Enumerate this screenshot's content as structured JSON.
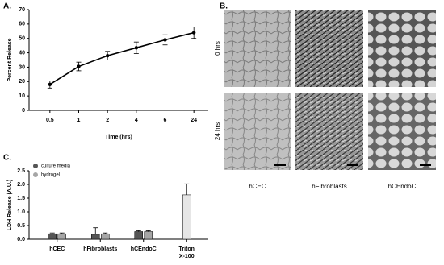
{
  "chart_data": [
    {
      "type": "line",
      "panel": "A.",
      "xlabel": "Time (hrs)",
      "ylabel": "Percent Release",
      "categories": [
        "0.5",
        "1",
        "2",
        "4",
        "6",
        "24"
      ],
      "series": [
        {
          "color": "#000000",
          "values": [
            18,
            30.5,
            38,
            43.5,
            49,
            54
          ],
          "errors": [
            2.5,
            3,
            3,
            4,
            3.5,
            4
          ]
        }
      ],
      "ylim": [
        0,
        70
      ],
      "yticks": [
        0,
        10,
        20,
        30,
        40,
        50,
        60,
        70
      ]
    },
    {
      "type": "bar",
      "panel": "C.",
      "ylabel": "LDH Release (A.U.)",
      "categories": [
        [
          "hCEC"
        ],
        [
          "hFibroblasts"
        ],
        [
          "hCEndoC"
        ],
        [
          "Triton",
          "X-100"
        ]
      ],
      "series": [
        {
          "name": "culture media",
          "color": "#555555",
          "values": [
            0.2,
            0.18,
            0.28,
            null
          ],
          "errors": [
            0.03,
            0.24,
            0.03,
            null
          ]
        },
        {
          "name": "hydrogel",
          "color": "#a6a6a6",
          "values": [
            0.2,
            0.2,
            0.28,
            null
          ],
          "errors": [
            0.03,
            0.03,
            0.03,
            null
          ]
        },
        {
          "color": "#e6e6e6",
          "values": [
            null,
            null,
            null,
            1.62
          ],
          "errors": [
            null,
            null,
            null,
            0.4
          ]
        }
      ],
      "ylim": [
        0,
        2.5
      ],
      "yticks": [
        {
          "value": 0,
          "label": "0.0"
        },
        0.5,
        {
          "value": 1,
          "label": "1.0"
        },
        1.5,
        {
          "value": 2,
          "label": "2.0"
        },
        2.5
      ],
      "legend": "upper left"
    }
  ],
  "images": {
    "panel": "B.",
    "row_labels": [
      "0 hrs",
      "24 hrs"
    ],
    "col_labels": [
      "hCEC",
      "hFibroblasts",
      "hCEndoC"
    ]
  }
}
